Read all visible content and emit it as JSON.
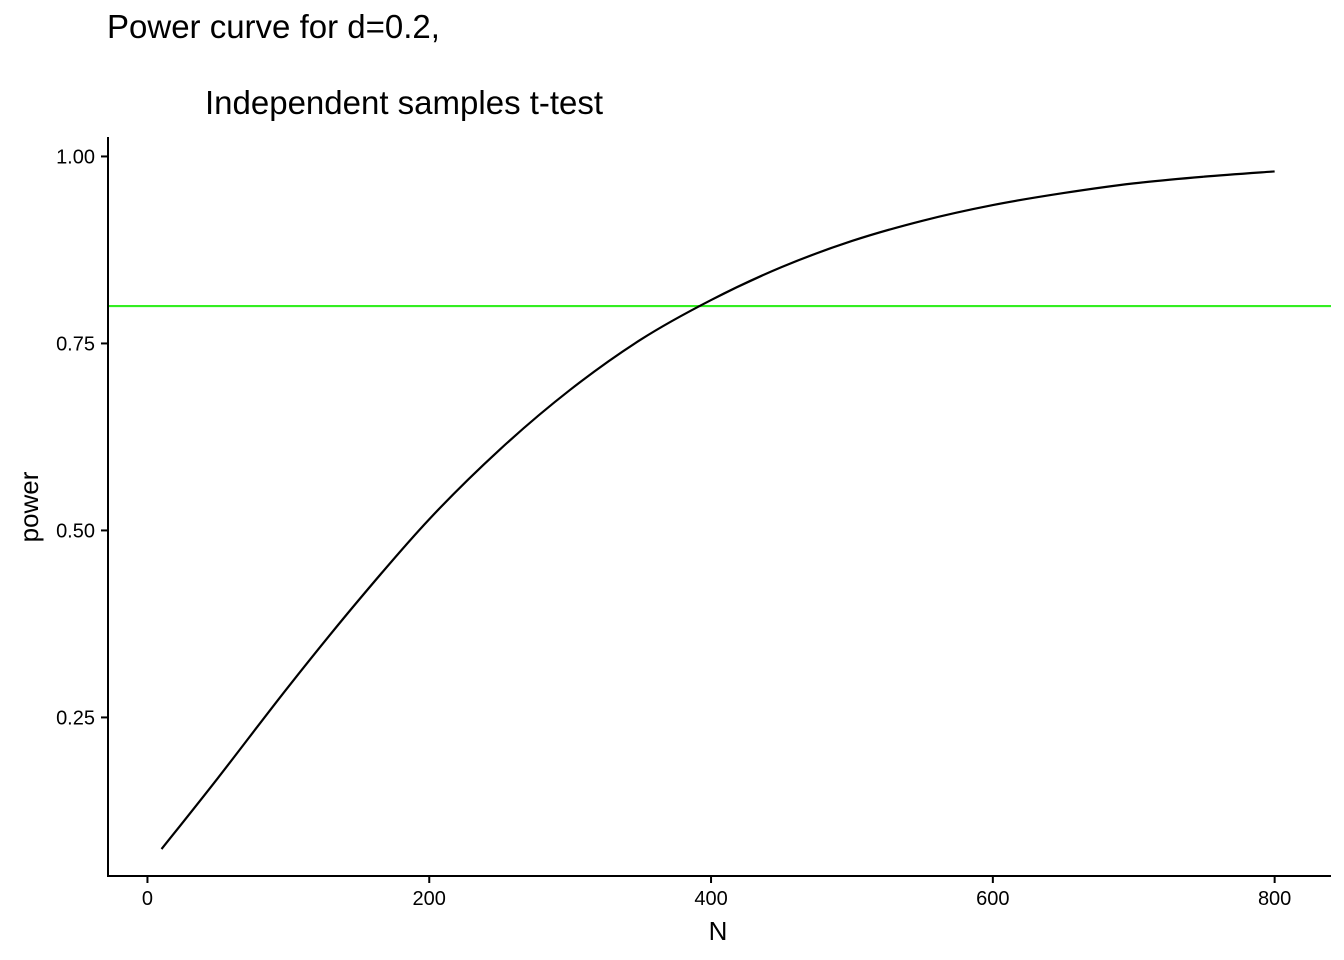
{
  "chart_data": {
    "type": "line",
    "title_line1": "Power curve for d=0.2,",
    "title_line2": "Independent samples t-test",
    "xlabel": "N",
    "ylabel": "power",
    "xlim": [
      -28,
      840
    ],
    "ylim": [
      0.038,
      1.026
    ],
    "x_ticks": [
      0,
      200,
      400,
      600,
      800
    ],
    "x_tick_labels": [
      "0",
      "200",
      "400",
      "600",
      "800"
    ],
    "y_ticks": [
      0.25,
      0.5,
      0.75,
      1.0
    ],
    "y_tick_labels": [
      "0.25",
      "0.50",
      "0.75",
      "1.00"
    ],
    "grid": false,
    "reference_line": {
      "y": 0.8,
      "color": "#33ee22"
    },
    "series": [
      {
        "color": "#000000",
        "x": [
          10,
          50,
          100,
          150,
          200,
          250,
          300,
          350,
          400,
          450,
          500,
          550,
          600,
          650,
          700,
          750,
          800
        ],
        "y": [
          0.074,
          0.169,
          0.291,
          0.407,
          0.515,
          0.608,
          0.688,
          0.755,
          0.808,
          0.852,
          0.887,
          0.914,
          0.935,
          0.951,
          0.964,
          0.973,
          0.98
        ]
      }
    ]
  }
}
